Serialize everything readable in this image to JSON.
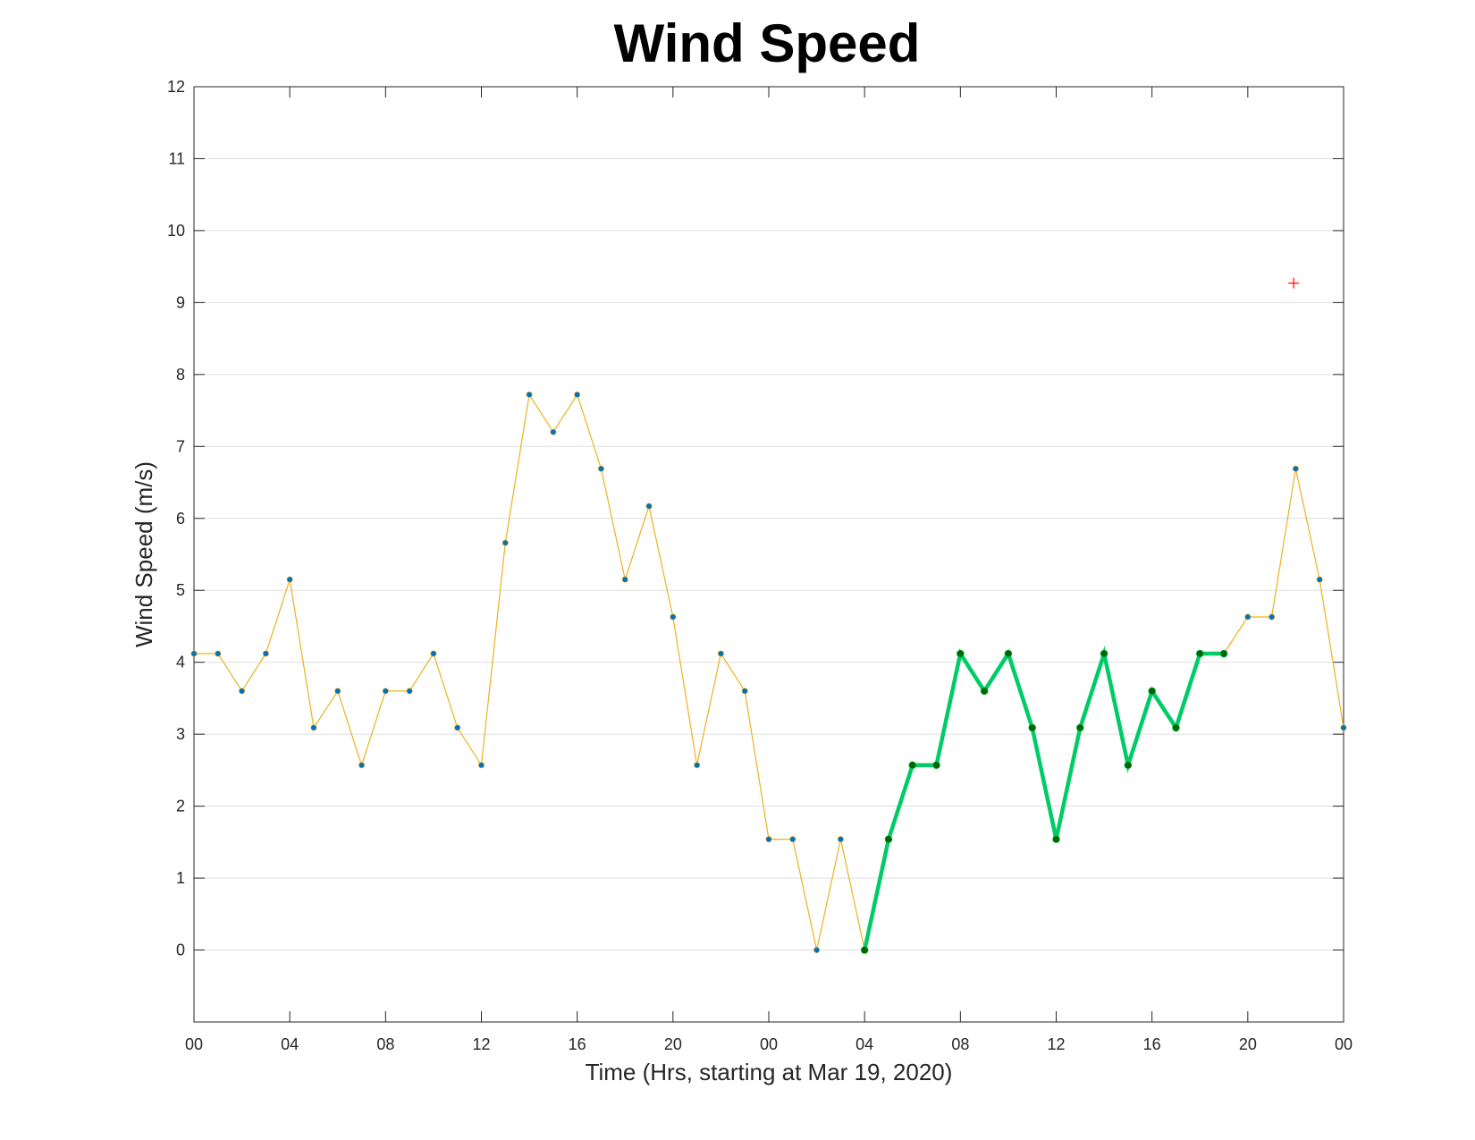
{
  "chart_data": {
    "type": "line",
    "title": "Wind Speed",
    "xlabel": "Time (Hrs, starting at Mar 19, 2020)",
    "ylabel": "Wind Speed (m/s)",
    "ylim": [
      -1,
      12
    ],
    "xlim": [
      "2020-03-19 00:00",
      "2020-03-21 00:00"
    ],
    "x_tick_labels": [
      "00",
      "04",
      "08",
      "12",
      "16",
      "20",
      "00",
      "04",
      "08",
      "12",
      "16",
      "20",
      "00"
    ],
    "y_ticks": [
      0,
      1,
      2,
      3,
      4,
      5,
      6,
      7,
      8,
      9,
      10,
      11,
      12
    ],
    "grid": "horizontal",
    "series": [
      {
        "color": "#edb120",
        "marker_color": "#0072bd",
        "x": [
          "2020-03-19 00:00",
          "2020-03-19 01:00",
          "2020-03-19 02:00",
          "2020-03-19 03:00",
          "2020-03-19 04:00",
          "2020-03-19 05:00",
          "2020-03-19 06:00",
          "2020-03-19 07:00",
          "2020-03-19 08:00",
          "2020-03-19 09:00",
          "2020-03-19 10:00",
          "2020-03-19 11:00",
          "2020-03-19 12:00",
          "2020-03-19 13:00",
          "2020-03-19 14:00",
          "2020-03-19 15:00",
          "2020-03-19 16:00",
          "2020-03-19 17:00",
          "2020-03-19 18:00",
          "2020-03-19 19:00",
          "2020-03-19 20:00",
          "2020-03-19 21:00",
          "2020-03-19 22:00",
          "2020-03-19 23:00",
          "2020-03-20 00:00",
          "2020-03-20 01:00",
          "2020-03-20 02:00",
          "2020-03-20 03:00",
          "2020-03-20 04:00",
          "2020-03-20 05:00",
          "2020-03-20 06:00",
          "2020-03-20 07:00",
          "2020-03-20 08:00",
          "2020-03-20 09:00",
          "2020-03-20 10:00",
          "2020-03-20 11:00",
          "2020-03-20 12:00",
          "2020-03-20 13:00",
          "2020-03-20 14:00",
          "2020-03-20 15:00",
          "2020-03-20 16:00",
          "2020-03-20 17:00",
          "2020-03-20 18:00",
          "2020-03-20 19:00",
          "2020-03-20 20:00",
          "2020-03-20 21:00",
          "2020-03-20 22:00",
          "2020-03-20 23:00",
          "2020-03-21 00:00"
        ],
        "values": [
          4.12,
          4.12,
          3.6,
          4.12,
          5.15,
          3.09,
          3.6,
          2.57,
          3.6,
          3.6,
          4.12,
          3.09,
          2.57,
          5.66,
          7.72,
          7.2,
          7.72,
          6.69,
          5.15,
          6.17,
          4.63,
          2.57,
          4.12,
          3.6,
          1.54,
          1.54,
          0,
          1.54,
          0,
          1.54,
          2.57,
          2.57,
          4.12,
          3.6,
          4.12,
          3.09,
          1.54,
          3.09,
          4.12,
          2.57,
          3.6,
          3.09,
          4.12,
          4.12,
          4.63,
          4.63,
          6.69,
          5.15,
          3.09
        ]
      },
      {
        "color": "#00cc66",
        "marker_color": "#006600",
        "x": [
          "2020-03-20 04:00",
          "2020-03-20 05:00",
          "2020-03-20 06:00",
          "2020-03-20 07:00",
          "2020-03-20 08:00",
          "2020-03-20 09:00",
          "2020-03-20 10:00",
          "2020-03-20 11:00",
          "2020-03-20 12:00",
          "2020-03-20 13:00",
          "2020-03-20 14:00",
          "2020-03-20 15:00",
          "2020-03-20 16:00",
          "2020-03-20 17:00",
          "2020-03-20 18:00",
          "2020-03-20 19:00"
        ],
        "values": [
          0,
          1.54,
          2.57,
          2.57,
          4.12,
          3.6,
          4.12,
          3.09,
          1.54,
          3.09,
          4.12,
          2.57,
          3.6,
          3.09,
          4.12,
          4.12
        ]
      }
    ],
    "annotations": [
      {
        "marker": "+",
        "color": "#ff0000",
        "x": "2020-03-20 21:55",
        "y": 9.27
      }
    ]
  }
}
